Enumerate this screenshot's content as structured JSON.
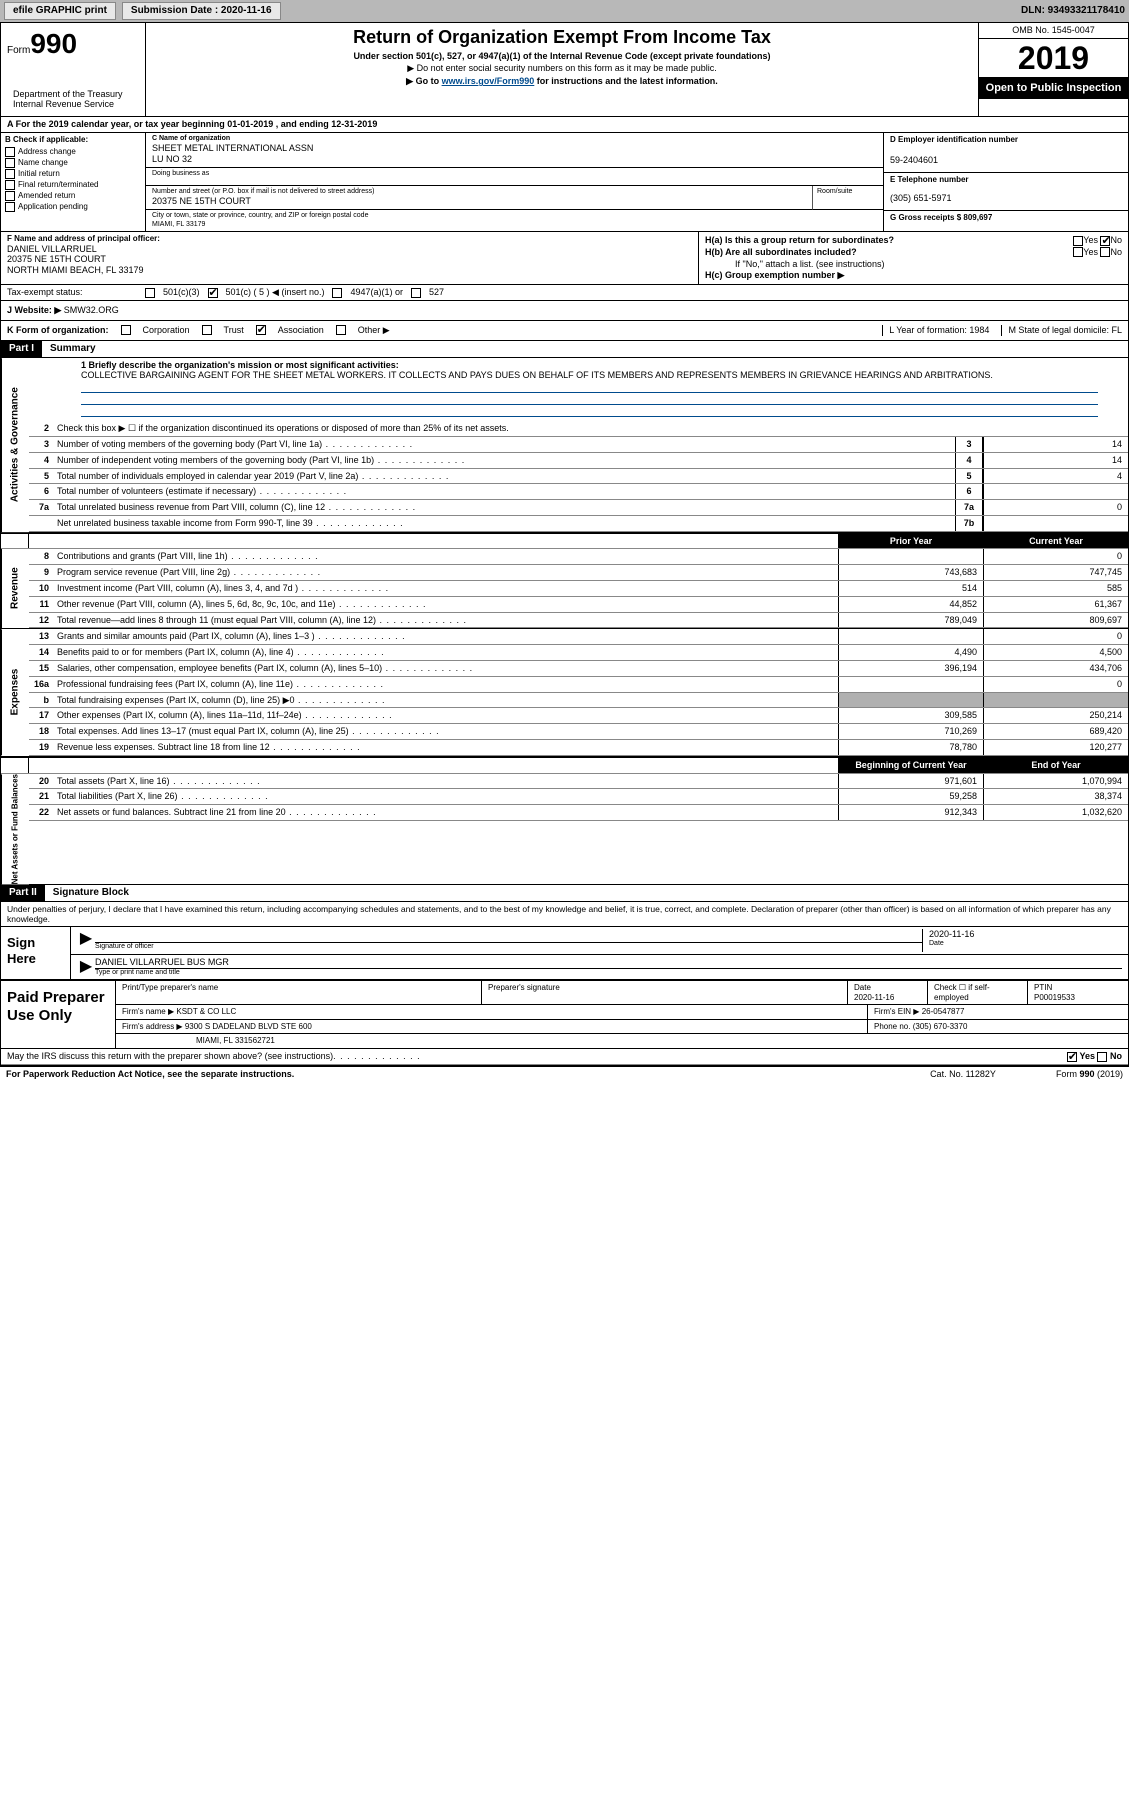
{
  "topbar": {
    "efile": "efile GRAPHIC print",
    "submission_label": "Submission Date : 2020-11-16",
    "dln": "DLN: 93493321178410"
  },
  "header": {
    "form_prefix": "Form",
    "form_number": "990",
    "dept": "Department of the Treasury\nInternal Revenue Service",
    "title": "Return of Organization Exempt From Income Tax",
    "subtitle": "Under section 501(c), 527, or 4947(a)(1) of the Internal Revenue Code (except private foundations)",
    "note1": "▶ Do not enter social security numbers on this form as it may be made public.",
    "note2_prefix": "▶ Go to ",
    "note2_link": "www.irs.gov/Form990",
    "note2_suffix": " for instructions and the latest information.",
    "omb": "OMB No. 1545-0047",
    "year": "2019",
    "inspection": "Open to Public Inspection"
  },
  "row_a": "A For the 2019 calendar year, or tax year beginning 01-01-2019    , and ending 12-31-2019",
  "box_b": {
    "label": "B Check if applicable:",
    "opts": [
      "Address change",
      "Name change",
      "Initial return",
      "Final return/terminated",
      "Amended return",
      "Application pending"
    ]
  },
  "box_c": {
    "caption": "C Name of organization",
    "name": "SHEET METAL INTERNATIONAL ASSN\nLU NO 32",
    "dba_caption": "Doing business as",
    "addr_caption": "Number and street (or P.O. box if mail is not delivered to street address)",
    "addr": "20375 NE 15TH COURT",
    "room_caption": "Room/suite",
    "city_caption": "City or town, state or province, country, and ZIP or foreign postal code",
    "city": "MIAMI, FL  33179"
  },
  "box_d": {
    "caption": "D Employer identification number",
    "value": "59-2404601"
  },
  "box_e": {
    "caption": "E Telephone number",
    "value": "(305) 651-5971"
  },
  "box_g": {
    "label": "G Gross receipts $ 809,697"
  },
  "box_f": {
    "caption": "F  Name and address of principal officer:",
    "name": "DANIEL VILLARRUEL",
    "addr1": "20375 NE 15TH COURT",
    "addr2": "NORTH MIAMI BEACH, FL  33179"
  },
  "box_h": {
    "a": "H(a)  Is this a group return for subordinates?",
    "a_yes": "Yes",
    "a_no": "No",
    "b": "H(b)  Are all subordinates included?",
    "b_note": "If \"No,\" attach a list. (see instructions)",
    "c": "H(c)  Group exemption number ▶"
  },
  "tax_status": {
    "label": "Tax-exempt status:",
    "opts": [
      "501(c)(3)",
      "501(c) ( 5 ) ◀ (insert no.)",
      "4947(a)(1) or",
      "527"
    ],
    "checked_idx": 1
  },
  "row_j": {
    "label": "J   Website: ▶",
    "value": "SMW32.ORG"
  },
  "row_k": {
    "label": "K Form of organization:",
    "opts": [
      "Corporation",
      "Trust",
      "Association",
      "Other ▶"
    ],
    "checked_idx": 2,
    "l_label": "L Year of formation: 1984",
    "m_label": "M State of legal domicile: FL"
  },
  "part1": {
    "tag": "Part I",
    "title": "Summary",
    "line1_label": "1  Briefly describe the organization's mission or most significant activities:",
    "mission": "COLLECTIVE BARGAINING AGENT FOR THE SHEET METAL WORKERS. IT COLLECTS AND PAYS DUES ON BEHALF OF ITS MEMBERS AND REPRESENTS MEMBERS IN GRIEVANCE HEARINGS AND ARBITRATIONS.",
    "line2": "Check this box ▶ ☐  if the organization discontinued its operations or disposed of more than 25% of its net assets.",
    "gov_rows": [
      {
        "n": "3",
        "d": "Number of voting members of the governing body (Part VI, line 1a)",
        "box": "3",
        "v": "14"
      },
      {
        "n": "4",
        "d": "Number of independent voting members of the governing body (Part VI, line 1b)",
        "box": "4",
        "v": "14"
      },
      {
        "n": "5",
        "d": "Total number of individuals employed in calendar year 2019 (Part V, line 2a)",
        "box": "5",
        "v": "4"
      },
      {
        "n": "6",
        "d": "Total number of volunteers (estimate if necessary)",
        "box": "6",
        "v": ""
      },
      {
        "n": "7a",
        "d": "Total unrelated business revenue from Part VIII, column (C), line 12",
        "box": "7a",
        "v": "0"
      },
      {
        "n": "",
        "d": "Net unrelated business taxable income from Form 990-T, line 39",
        "box": "7b",
        "v": ""
      }
    ],
    "col_prior": "Prior Year",
    "col_current": "Current Year",
    "rev_rows": [
      {
        "n": "8",
        "d": "Contributions and grants (Part VIII, line 1h)",
        "p": "",
        "c": "0"
      },
      {
        "n": "9",
        "d": "Program service revenue (Part VIII, line 2g)",
        "p": "743,683",
        "c": "747,745"
      },
      {
        "n": "10",
        "d": "Investment income (Part VIII, column (A), lines 3, 4, and 7d )",
        "p": "514",
        "c": "585"
      },
      {
        "n": "11",
        "d": "Other revenue (Part VIII, column (A), lines 5, 6d, 8c, 9c, 10c, and 11e)",
        "p": "44,852",
        "c": "61,367"
      },
      {
        "n": "12",
        "d": "Total revenue—add lines 8 through 11 (must equal Part VIII, column (A), line 12)",
        "p": "789,049",
        "c": "809,697"
      }
    ],
    "exp_rows": [
      {
        "n": "13",
        "d": "Grants and similar amounts paid (Part IX, column (A), lines 1–3 )",
        "p": "",
        "c": "0"
      },
      {
        "n": "14",
        "d": "Benefits paid to or for members (Part IX, column (A), line 4)",
        "p": "4,490",
        "c": "4,500"
      },
      {
        "n": "15",
        "d": "Salaries, other compensation, employee benefits (Part IX, column (A), lines 5–10)",
        "p": "396,194",
        "c": "434,706"
      },
      {
        "n": "16a",
        "d": "Professional fundraising fees (Part IX, column (A), line 11e)",
        "p": "",
        "c": "0"
      },
      {
        "n": "b",
        "d": "Total fundraising expenses (Part IX, column (D), line 25) ▶0",
        "p": "shaded",
        "c": "shaded"
      },
      {
        "n": "17",
        "d": "Other expenses (Part IX, column (A), lines 11a–11d, 11f–24e)",
        "p": "309,585",
        "c": "250,214"
      },
      {
        "n": "18",
        "d": "Total expenses. Add lines 13–17 (must equal Part IX, column (A), line 25)",
        "p": "710,269",
        "c": "689,420"
      },
      {
        "n": "19",
        "d": "Revenue less expenses. Subtract line 18 from line 12",
        "p": "78,780",
        "c": "120,277"
      }
    ],
    "col_begin": "Beginning of Current Year",
    "col_end": "End of Year",
    "net_rows": [
      {
        "n": "20",
        "d": "Total assets (Part X, line 16)",
        "p": "971,601",
        "c": "1,070,994"
      },
      {
        "n": "21",
        "d": "Total liabilities (Part X, line 26)",
        "p": "59,258",
        "c": "38,374"
      },
      {
        "n": "22",
        "d": "Net assets or fund balances. Subtract line 21 from line 20",
        "p": "912,343",
        "c": "1,032,620"
      }
    ],
    "side_gov": "Activities & Governance",
    "side_rev": "Revenue",
    "side_exp": "Expenses",
    "side_net": "Net Assets or Fund Balances"
  },
  "part2": {
    "tag": "Part II",
    "title": "Signature Block",
    "declaration": "Under penalties of perjury, I declare that I have examined this return, including accompanying schedules and statements, and to the best of my knowledge and belief, it is true, correct, and complete. Declaration of preparer (other than officer) is based on all information of which preparer has any knowledge.",
    "sign_here": "Sign Here",
    "sig_officer": "Signature of officer",
    "sig_date": "2020-11-16",
    "date_lbl": "Date",
    "sig_name": "DANIEL VILLARRUEL  BUS MGR",
    "sig_name_lbl": "Type or print name and title",
    "paid_prep": "Paid Preparer Use Only",
    "prep_name_lbl": "Print/Type preparer's name",
    "prep_sig_lbl": "Preparer's signature",
    "prep_date_lbl": "Date",
    "prep_date": "2020-11-16",
    "prep_check_lbl": "Check ☐ if self-employed",
    "ptin_lbl": "PTIN",
    "ptin": "P00019533",
    "firm_name_lbl": "Firm's name    ▶",
    "firm_name": "KSDT & CO LLC",
    "firm_ein_lbl": "Firm's EIN ▶",
    "firm_ein": "26-0547877",
    "firm_addr_lbl": "Firm's address ▶",
    "firm_addr": "9300 S DADELAND BLVD STE 600",
    "firm_city": "MIAMI, FL  331562721",
    "firm_phone_lbl": "Phone no. (305) 670-3370",
    "discuss": "May the IRS discuss this return with the preparer shown above? (see instructions)",
    "discuss_yes": "Yes",
    "discuss_no": "No"
  },
  "footer": {
    "left": "For Paperwork Reduction Act Notice, see the separate instructions.",
    "mid": "Cat. No. 11282Y",
    "right": "Form 990 (2019)"
  },
  "colors": {
    "link": "#004b8d",
    "shade": "#b0b0b0",
    "topbar": "#b8b8b8"
  }
}
